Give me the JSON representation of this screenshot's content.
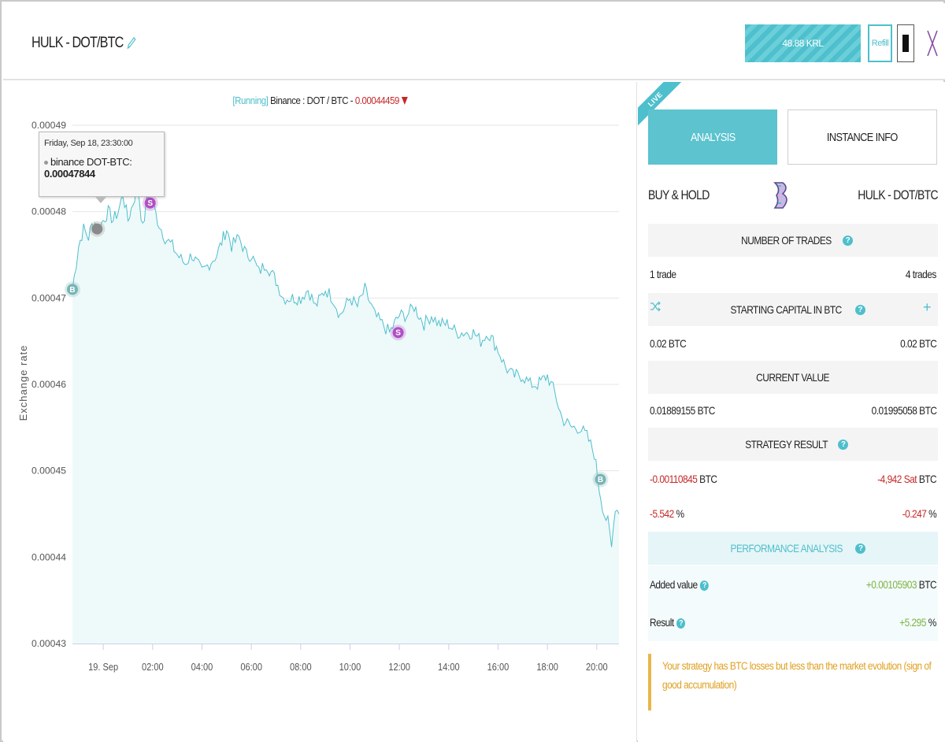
{
  "header": {
    "title": "HULK - DOT/BTC",
    "balance": "48.88 KRL",
    "refill_label": "Refill"
  },
  "chart": {
    "status": "[Running]",
    "source": "Binance : DOT / BTC - ",
    "last_price": "0.00044459",
    "ylabel": "Exchange rate",
    "tooltip": {
      "date": "Friday, Sep 18, 23:30:00",
      "series": "binance DOT-BTC: ",
      "value": "0.00047844"
    }
  },
  "chart_data": {
    "type": "area",
    "title": "",
    "xlabel": "",
    "ylabel": "Exchange rate",
    "ylim": [
      0.00043,
      0.00049
    ],
    "y_ticks": [
      "0.00049",
      "0.00048",
      "0.00047",
      "0.00046",
      "0.00045",
      "0.00044",
      "0.00043"
    ],
    "x_ticks": [
      "19. Sep",
      "02:00",
      "04:00",
      "06:00",
      "08:00",
      "10:00",
      "12:00",
      "14:00",
      "16:00",
      "18:00",
      "20:00"
    ],
    "x_hours": [
      0,
      2,
      4,
      6,
      8,
      10,
      12,
      14,
      16,
      18,
      20
    ],
    "series": [
      {
        "name": "binance DOT-BTC",
        "color": "#4ebfcc",
        "x_hours": [
          -1.25,
          -1.1,
          -1.0,
          -0.8,
          -0.6,
          -0.4,
          -0.2,
          0.0,
          0.2,
          0.4,
          0.6,
          0.8,
          1.0,
          1.2,
          1.4,
          1.6,
          1.8,
          2.0,
          2.2,
          2.5,
          2.8,
          3.0,
          3.3,
          3.6,
          4.0,
          4.3,
          4.6,
          5.0,
          5.2,
          5.5,
          5.8,
          6.0,
          6.3,
          6.6,
          7.0,
          7.3,
          7.6,
          8.0,
          8.3,
          8.6,
          9.0,
          9.3,
          9.6,
          10.0,
          10.3,
          10.6,
          11.0,
          11.3,
          11.6,
          12.0,
          12.3,
          12.6,
          13.0,
          13.3,
          13.6,
          14.0,
          14.3,
          14.6,
          15.0,
          15.3,
          15.6,
          16.0,
          16.3,
          16.6,
          17.0,
          17.3,
          17.6,
          18.0,
          18.3,
          18.6,
          19.0,
          19.3,
          19.6,
          19.9,
          20.1,
          20.3,
          20.45,
          20.6,
          20.75,
          20.9
        ],
        "values": [
          0.000471,
          0.000474,
          0.000476,
          0.000478,
          0.000477,
          0.000479,
          0.000478,
          0.000479,
          0.00048,
          0.000479,
          0.00048,
          0.000482,
          0.000479,
          0.000481,
          0.000483,
          0.000478,
          0.000482,
          0.000481,
          0.000479,
          0.000477,
          0.000476,
          0.000475,
          0.000474,
          0.000475,
          0.000473,
          0.000474,
          0.000475,
          0.000478,
          0.000476,
          0.000477,
          0.000475,
          0.000475,
          0.000473,
          0.000474,
          0.000472,
          0.00047,
          0.00047,
          0.00047,
          0.000471,
          0.000469,
          0.000471,
          0.00047,
          0.000468,
          0.00047,
          0.000469,
          0.000471,
          0.000468,
          0.000467,
          0.000466,
          0.000468,
          0.000468,
          0.000469,
          0.000467,
          0.000468,
          0.000467,
          0.000467,
          0.000466,
          0.000466,
          0.000466,
          0.000465,
          0.000466,
          0.000464,
          0.000462,
          0.000461,
          0.000461,
          0.00046,
          0.00046,
          0.000461,
          0.000459,
          0.000456,
          0.000455,
          0.000455,
          0.000454,
          0.000452,
          0.000448,
          0.000445,
          0.000444,
          0.000441,
          0.000446,
          0.000445
        ]
      }
    ],
    "markers": [
      {
        "label": "B",
        "x_hours": -1.25,
        "value": 0.000471,
        "color": "#78b4b4"
      },
      {
        "label": "",
        "x_hours": -0.25,
        "value": 0.000478,
        "color": "#8a8a8a"
      },
      {
        "label": "S",
        "x_hours": 1.9,
        "value": 0.000481,
        "color": "#b04fc4"
      },
      {
        "label": "S",
        "x_hours": 11.95,
        "value": 0.000466,
        "color": "#b04fc4"
      },
      {
        "label": "B",
        "x_hours": 20.15,
        "value": 0.000449,
        "color": "#78b4b4"
      }
    ]
  },
  "panel": {
    "live": "LIVE",
    "tab_analysis": "ANALYSIS",
    "tab_info": "INSTANCE INFO",
    "strategy_name": "BUY & HOLD",
    "instance_name": "HULK - DOT/BTC",
    "trades_header": "NUMBER OF TRADES",
    "trades_left": "1 trade",
    "trades_right": "4 trades",
    "capital_header": "STARTING CAPITAL IN BTC",
    "capital_left": "0.02 BTC",
    "capital_right": "0.02 BTC",
    "current_header": "CURRENT VALUE",
    "current_left": "0.01889155 BTC",
    "current_right": "0.01995058 BTC",
    "result_header": "STRATEGY RESULT",
    "result_left_value": "-0.00110845",
    "result_left_unit": " BTC",
    "result_right_value": "-4,942 Sat",
    "result_right_unit": " BTC",
    "pct_left_value": "-5.542",
    "pct_left_unit": " %",
    "pct_right_value": "-0.247",
    "pct_right_unit": " %",
    "perf_header": "PERFORMANCE ANALYSIS",
    "added_label": "Added value",
    "added_value": "+0.00105903",
    "added_unit": " BTC",
    "result_label": "Result",
    "result_value": "+5.295",
    "result_unit": " %",
    "help": "?",
    "plus": "+",
    "notice": "Your strategy has BTC losses but less than the market evolution (sign of good accumulation)"
  },
  "colors": {
    "accent": "#4ebfcc",
    "negative": "#c62828",
    "positive": "#7cb342",
    "warning": "#e0a022"
  }
}
